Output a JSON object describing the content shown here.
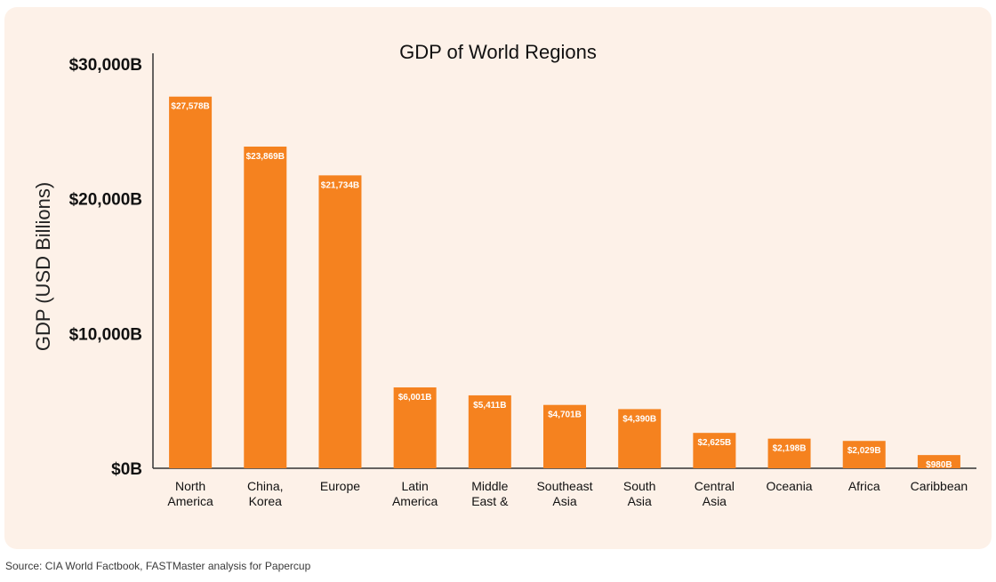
{
  "chart_data": {
    "type": "bar",
    "title": "GDP of World Regions",
    "ylabel": "GDP (USD Billions)",
    "xlabel": "",
    "ylim": [
      0,
      30000
    ],
    "yticks": [
      0,
      10000,
      20000,
      30000
    ],
    "ytick_labels": [
      "$0B",
      "$10,000B",
      "$20,000B",
      "$30,000B"
    ],
    "categories": [
      [
        "North",
        "America"
      ],
      [
        "China,",
        "Korea"
      ],
      [
        "Europe"
      ],
      [
        "Latin",
        "America"
      ],
      [
        "Middle",
        "East &"
      ],
      [
        "Southeast",
        "Asia"
      ],
      [
        "South",
        "Asia"
      ],
      [
        "Central",
        "Asia"
      ],
      [
        "Oceania"
      ],
      [
        "Africa"
      ],
      [
        "Caribbean"
      ]
    ],
    "values": [
      27578,
      23869,
      21734,
      6001,
      5411,
      4701,
      4390,
      2625,
      2198,
      2029,
      980
    ],
    "value_labels": [
      "$27,578B",
      "$23,869B",
      "$21,734B",
      "$6,001B",
      "$5,411B",
      "$4,701B",
      "$4,390B",
      "$2,625B",
      "$2,198B",
      "$2,029B",
      "$980B"
    ],
    "bar_color": "#f5821f",
    "grid": false,
    "legend": "none"
  },
  "source": "Source: CIA World Factbook, FASTMaster analysis for Papercup"
}
